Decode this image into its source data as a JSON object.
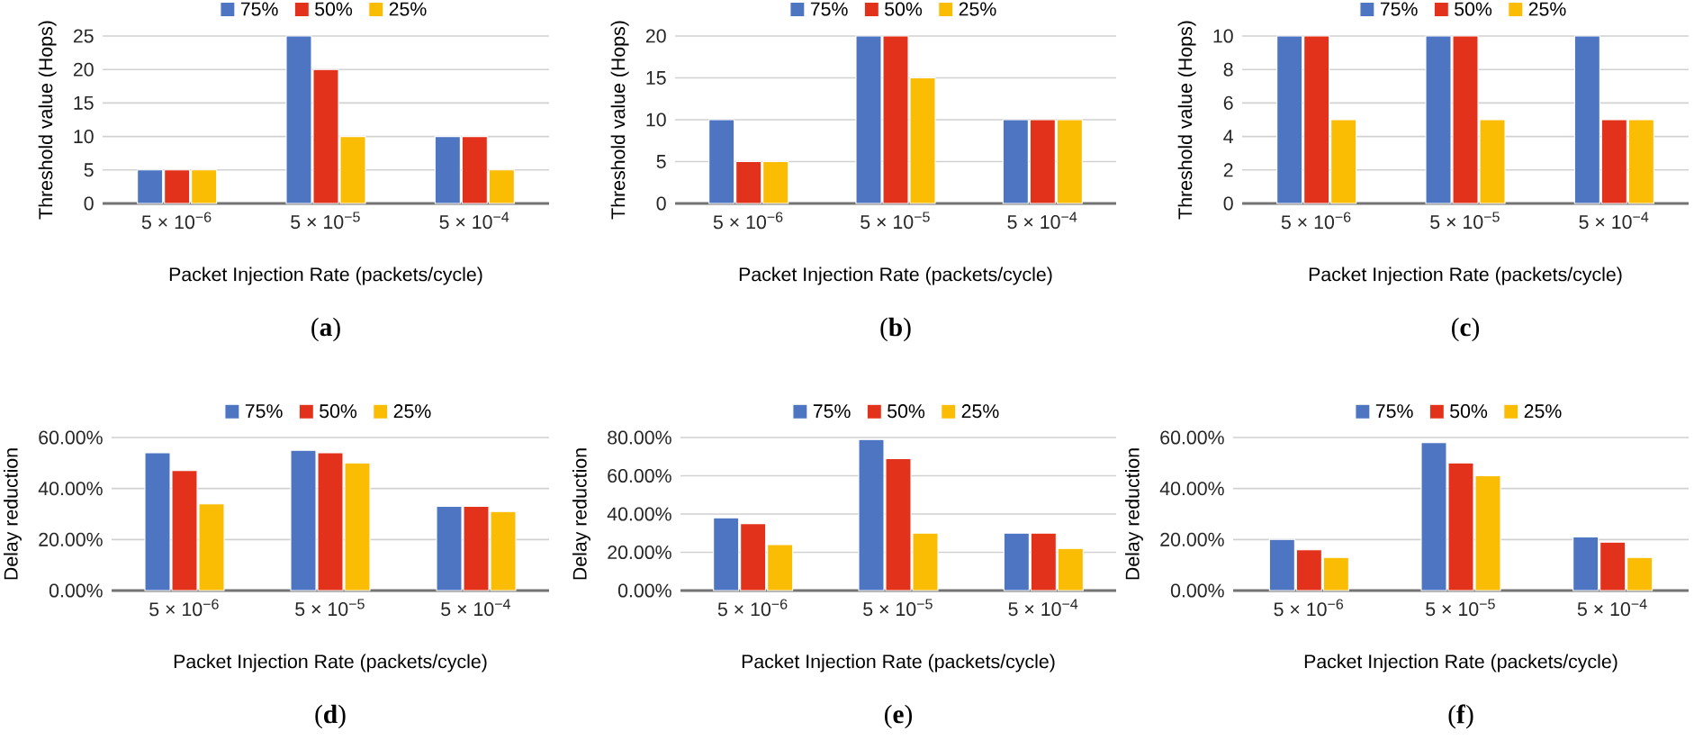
{
  "chart_data": [
    {
      "type": "bar",
      "xlabel": "Packet Injection Rate (packets/cycle)",
      "ylabel": "Threshold value (Hops)",
      "annotations": [
        "(**a**)"
      ],
      "categories": [
        "5 × 10$^{−6}$",
        "5 × 10$^{−5}$",
        "5 × 10$^{−4}$"
      ],
      "series": [
        {
          "name": "75%",
          "color": "#4e75c2",
          "values": [
            5,
            25,
            10
          ]
        },
        {
          "name": "50%",
          "color": "#e2321b",
          "values": [
            5,
            20,
            10
          ]
        },
        {
          "name": "25%",
          "color": "#fbbc04",
          "values": [
            5,
            10,
            5
          ]
        }
      ],
      "ylim": [
        0,
        25
      ],
      "yticks": [
        0,
        5,
        10,
        15,
        20,
        25
      ],
      "grid": "y",
      "legend": "top"
    },
    {
      "type": "bar",
      "xlabel": "Packet Injection Rate (packets/cycle)",
      "ylabel": "Threshold value (Hops)",
      "annotations": [
        "(**b**)"
      ],
      "categories": [
        "5 × 10$^{−6}$",
        "5 × 10$^{−5}$",
        "5 × 10$^{−4}$"
      ],
      "series": [
        {
          "name": "75%",
          "color": "#4e75c2",
          "values": [
            10,
            20,
            10
          ]
        },
        {
          "name": "50%",
          "color": "#e2321b",
          "values": [
            5,
            20,
            10
          ]
        },
        {
          "name": "25%",
          "color": "#fbbc04",
          "values": [
            5,
            15,
            10
          ]
        }
      ],
      "ylim": [
        0,
        20
      ],
      "yticks": [
        0,
        5,
        10,
        15,
        20
      ],
      "grid": "y",
      "legend": "top"
    },
    {
      "type": "bar",
      "xlabel": "Packet Injection Rate (packets/cycle)",
      "ylabel": "Threshold value (Hops)",
      "annotations": [
        "(**c**)"
      ],
      "categories": [
        "5 × 10$^{−6}$",
        "5 × 10$^{−5}$",
        "5 × 10$^{−4}$"
      ],
      "series": [
        {
          "name": "75%",
          "color": "#4e75c2",
          "values": [
            10,
            10,
            10
          ]
        },
        {
          "name": "50%",
          "color": "#e2321b",
          "values": [
            10,
            10,
            5
          ]
        },
        {
          "name": "25%",
          "color": "#fbbc04",
          "values": [
            5,
            5,
            5
          ]
        }
      ],
      "ylim": [
        0,
        10
      ],
      "yticks": [
        0,
        2,
        4,
        6,
        8,
        10
      ],
      "grid": "y",
      "legend": "top"
    },
    {
      "type": "bar",
      "xlabel": "Packet Injection Rate (packets/cycle)",
      "ylabel": "Delay reduction",
      "annotations": [
        "(**d**)"
      ],
      "categories": [
        "5 × 10$^{−6}$",
        "5 × 10$^{−5}$",
        "5 × 10$^{−4}$"
      ],
      "series": [
        {
          "name": "75%",
          "color": "#4e75c2",
          "values": [
            54,
            55,
            33
          ]
        },
        {
          "name": "50%",
          "color": "#e2321b",
          "values": [
            47,
            54,
            33
          ]
        },
        {
          "name": "25%",
          "color": "#fbbc04",
          "values": [
            34,
            50,
            31
          ]
        }
      ],
      "ylim": [
        0,
        60
      ],
      "yticks": [
        {
          "value": 0,
          "label": "0.00%"
        },
        {
          "value": 20,
          "label": "20.00%"
        },
        {
          "value": 40,
          "label": "40.00%"
        },
        {
          "value": 60,
          "label": "60.00%"
        }
      ],
      "grid": "y",
      "legend": "top"
    },
    {
      "type": "bar",
      "xlabel": "Packet Injection Rate (packets/cycle)",
      "ylabel": "Delay reduction",
      "annotations": [
        "(**e**)"
      ],
      "categories": [
        "5 × 10$^{−6}$",
        "5 × 10$^{−5}$",
        "5 × 10$^{−4}$"
      ],
      "series": [
        {
          "name": "75%",
          "color": "#4e75c2",
          "values": [
            38,
            79,
            30
          ]
        },
        {
          "name": "50%",
          "color": "#e2321b",
          "values": [
            35,
            69,
            30
          ]
        },
        {
          "name": "25%",
          "color": "#fbbc04",
          "values": [
            24,
            30,
            22
          ]
        }
      ],
      "ylim": [
        0,
        80
      ],
      "yticks": [
        {
          "value": 0,
          "label": "0.00%"
        },
        {
          "value": 20,
          "label": "20.00%"
        },
        {
          "value": 40,
          "label": "40.00%"
        },
        {
          "value": 60,
          "label": "60.00%"
        },
        {
          "value": 80,
          "label": "80.00%"
        }
      ],
      "grid": "y",
      "legend": "top"
    },
    {
      "type": "bar",
      "xlabel": "Packet Injection Rate (packets/cycle)",
      "ylabel": "Delay reduction",
      "annotations": [
        "(**f**)"
      ],
      "categories": [
        "5 × 10$^{−6}$",
        "5 × 10$^{−5}$",
        "5 × 10$^{−4}$"
      ],
      "series": [
        {
          "name": "75%",
          "color": "#4e75c2",
          "values": [
            20,
            58,
            21
          ]
        },
        {
          "name": "50%",
          "color": "#e2321b",
          "values": [
            16,
            50,
            19
          ]
        },
        {
          "name": "25%",
          "color": "#fbbc04",
          "values": [
            13,
            45,
            13
          ]
        }
      ],
      "ylim": [
        0,
        60
      ],
      "yticks": [
        {
          "value": 0,
          "label": "0.00%"
        },
        {
          "value": 20,
          "label": "20.00%"
        },
        {
          "value": 40,
          "label": "40.00%"
        },
        {
          "value": 60,
          "label": "60.00%"
        }
      ],
      "grid": "y",
      "legend": "top"
    }
  ]
}
